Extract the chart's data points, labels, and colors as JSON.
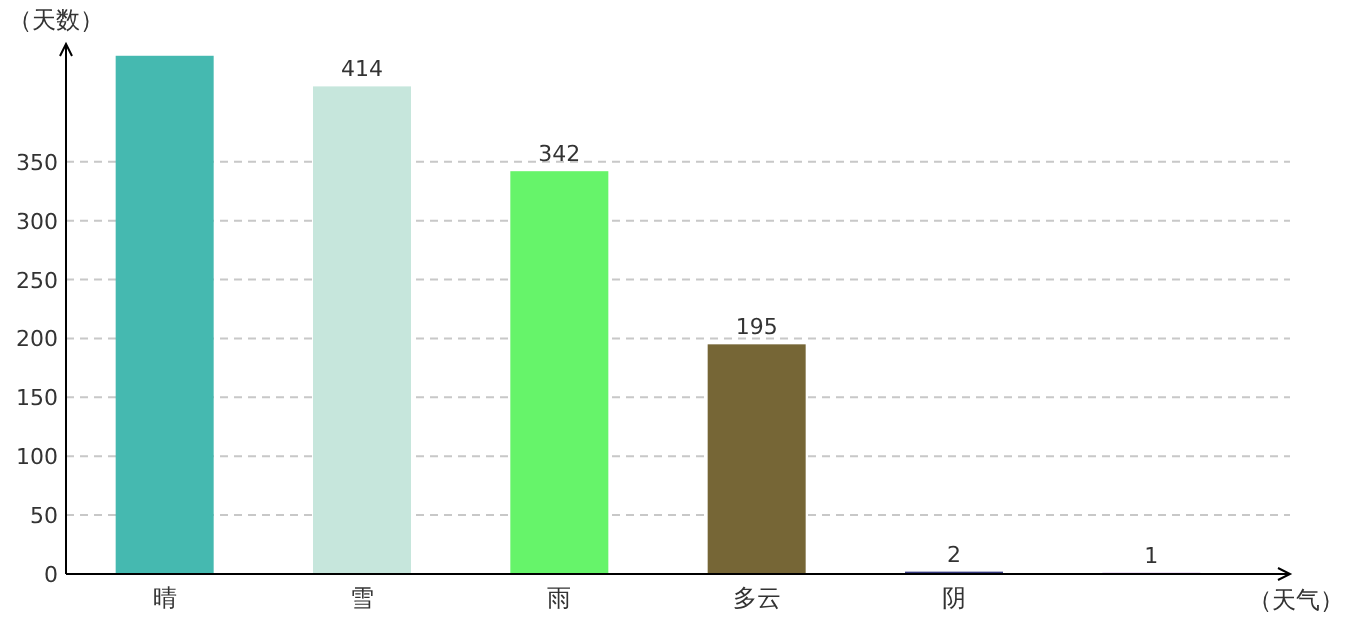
{
  "chart_data": {
    "type": "bar",
    "ylabel": "（天数）",
    "xlabel": "（天气）",
    "categories": [
      "晴",
      "雪",
      "雨",
      "多云",
      "阴",
      null
    ],
    "values": [
      440,
      414,
      342,
      195,
      2,
      1
    ],
    "colors": [
      "#45b9b0",
      "#c6e6dc",
      "#66f46a",
      "#766636",
      "#363a80",
      "#9b4fc8"
    ],
    "value_labels": [
      null,
      "414",
      "342",
      "195",
      "2",
      "1"
    ],
    "ylim": [
      0,
      450
    ],
    "yticks": [
      0,
      50,
      100,
      150,
      200,
      250,
      300,
      350
    ],
    "grid": "y"
  }
}
